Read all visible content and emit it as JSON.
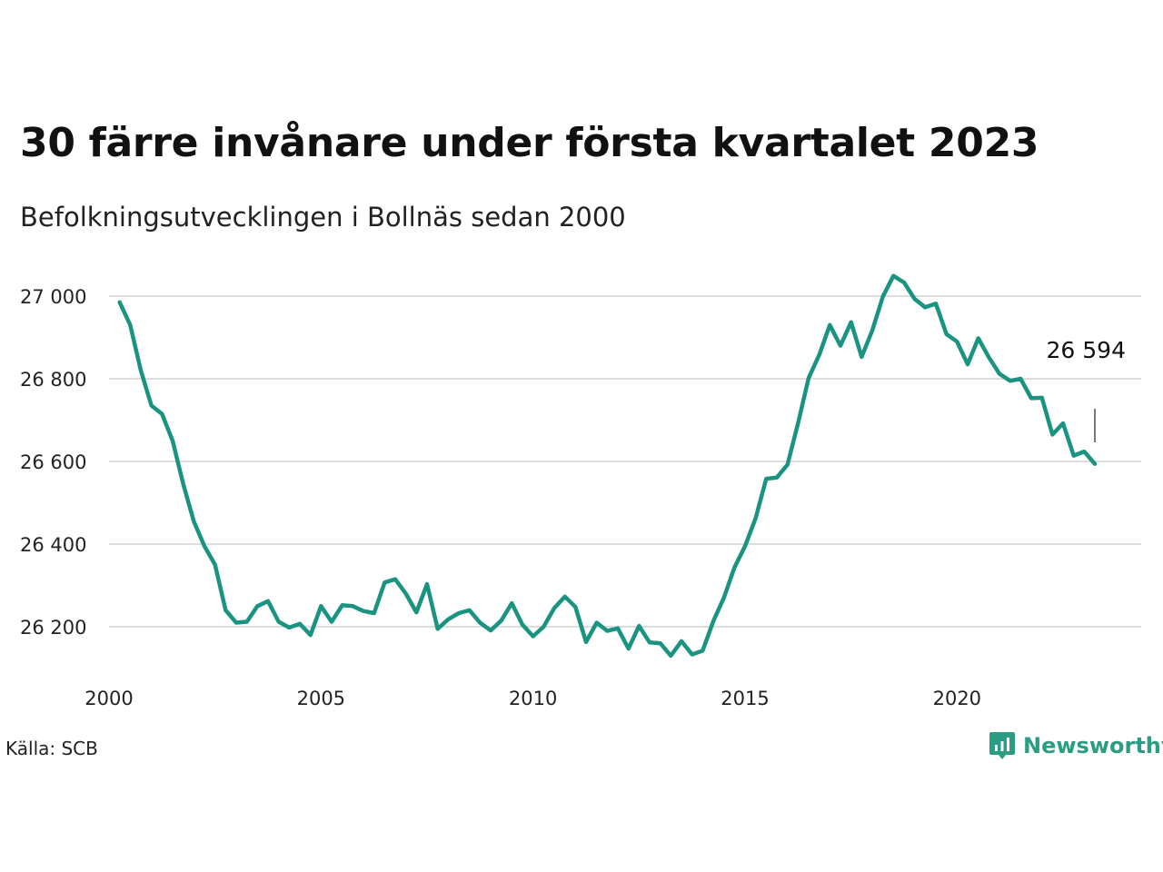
{
  "header": {
    "title": "30 färre invånare under första kvartalet 2023",
    "subtitle": "Befolkningsutvecklingen i Bollnäs sedan 2000"
  },
  "footer": {
    "source": "Källa: SCB",
    "brand": "Newsworthy",
    "brand_icon": "chart-logo-icon"
  },
  "colors": {
    "line": "#1a9480",
    "grid": "#dddddd",
    "brand": "#2a9d84"
  },
  "chart_data": {
    "type": "line",
    "title": "30 färre invånare under första kvartalet 2023",
    "subtitle": "Befolkningsutvecklingen i Bollnäs sedan 2000",
    "xlim": [
      2000,
      2024
    ],
    "ylim": [
      26100,
      27050
    ],
    "x_ticks": [
      2000,
      2005,
      2010,
      2015,
      2020
    ],
    "x_tick_labels": [
      "2000",
      "2005",
      "2010",
      "2015",
      "2020"
    ],
    "y_ticks": [
      26200,
      26400,
      26600,
      26800,
      27000
    ],
    "y_tick_labels": [
      "26 200",
      "26 400",
      "26 600",
      "26 800",
      "27 000"
    ],
    "grid": "horizontal",
    "last_value_label": "26 594",
    "series": [
      {
        "values": [
          26985,
          26930,
          26820,
          26735,
          26715,
          26650,
          26545,
          26455,
          26395,
          26350,
          26240,
          26210,
          26212,
          26250,
          26262,
          26212,
          26198,
          26207,
          26180,
          26250,
          26212,
          26252,
          26250,
          26238,
          26233,
          26307,
          26315,
          26280,
          26235,
          26303,
          26195,
          26218,
          26233,
          26240,
          26210,
          26191,
          26215,
          26257,
          26205,
          26177,
          26200,
          26245,
          26273,
          26248,
          26163,
          26210,
          26190,
          26196,
          26147,
          26202,
          26162,
          26160,
          26130,
          26165,
          26133,
          26142,
          26213,
          26270,
          26343,
          26395,
          26463,
          26558,
          26561,
          26592,
          26692,
          26802,
          26858,
          26930,
          26880,
          26937,
          26853,
          26917,
          26999,
          27049,
          27033,
          26993,
          26973,
          26982,
          26908,
          26890,
          26835,
          26898,
          26852,
          26812,
          26795,
          26800,
          26753,
          26754,
          26665,
          26692,
          26614,
          26624,
          26594
        ]
      }
    ]
  }
}
